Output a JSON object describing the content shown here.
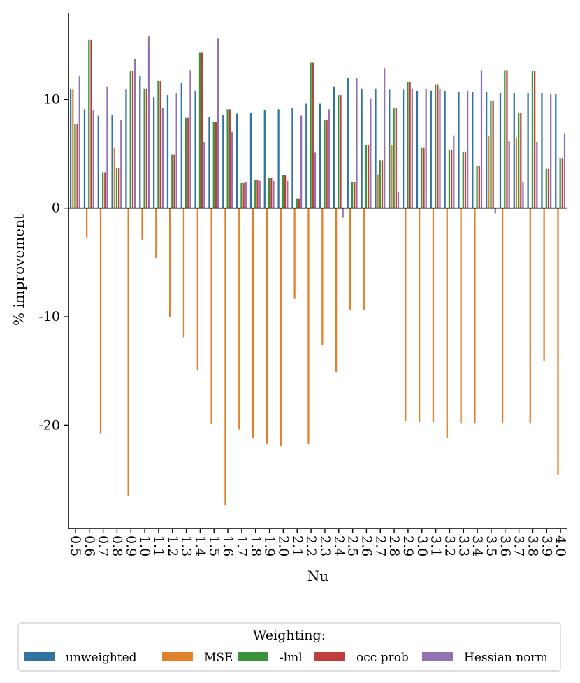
{
  "chart_data": {
    "type": "bar",
    "xlabel": "Nu",
    "ylabel": "% improvement",
    "ylim": [
      -29.5,
      18.0
    ],
    "yticks": [
      -20,
      -10,
      0,
      10
    ],
    "ytick_labels": [
      "-20",
      "-10",
      "0",
      "10"
    ],
    "categories": [
      "0.5",
      "0.6",
      "0.7",
      "0.8",
      "0.9",
      "1.0",
      "1.1",
      "1.2",
      "1.3",
      "1.4",
      "1.5",
      "1.6",
      "1.7",
      "1.8",
      "1.9",
      "2.0",
      "2.1",
      "2.2",
      "2.3",
      "2.4",
      "2.5",
      "2.6",
      "2.7",
      "2.8",
      "2.9",
      "3.0",
      "3.1",
      "3.2",
      "3.3",
      "3.4",
      "3.5",
      "3.6",
      "3.7",
      "3.8",
      "3.9",
      "4.0"
    ],
    "legend_title": "Weighting:",
    "legend_position": "bottom-center",
    "series": [
      {
        "name": "unweighted",
        "color": "#3274a1",
        "values": [
          10.9,
          9.1,
          8.5,
          8.6,
          10.9,
          12.2,
          10.2,
          10.4,
          11.5,
          10.8,
          8.4,
          8.6,
          8.7,
          8.8,
          9.0,
          9.1,
          9.2,
          9.6,
          9.6,
          11.2,
          12.0,
          11.0,
          11.0,
          10.9,
          10.9,
          10.8,
          10.8,
          10.8,
          10.7,
          10.7,
          10.7,
          10.6,
          10.6,
          10.6,
          10.6,
          10.5
        ]
      },
      {
        "name": "MSE",
        "color": "#e1812c",
        "values": [
          10.9,
          -2.7,
          -20.8,
          5.6,
          -26.5,
          -2.9,
          -4.6,
          -10.0,
          -11.9,
          -14.9,
          -19.9,
          -27.4,
          -20.4,
          -21.2,
          -21.7,
          -21.9,
          -8.3,
          -21.7,
          -12.6,
          -15.1,
          -9.4,
          -9.4,
          3.1,
          5.8,
          -19.6,
          -19.7,
          -19.7,
          -21.2,
          -19.8,
          -19.8,
          6.6,
          -19.8,
          6.5,
          -19.8,
          -14.1,
          -24.6
        ]
      },
      {
        "name": "-lml",
        "color": "#3a923a",
        "values": [
          7.7,
          15.5,
          3.3,
          3.7,
          12.6,
          11.0,
          11.7,
          4.9,
          8.3,
          14.3,
          7.9,
          9.1,
          2.3,
          2.6,
          2.8,
          3.0,
          0.9,
          13.4,
          8.1,
          10.4,
          2.4,
          5.8,
          4.4,
          9.2,
          11.6,
          5.6,
          11.4,
          5.4,
          5.2,
          3.9,
          9.9,
          12.7,
          8.8,
          12.6,
          3.6,
          4.6
        ]
      },
      {
        "name": "occ prob",
        "color": "#c03d3e",
        "values": [
          7.7,
          15.5,
          3.3,
          3.7,
          12.6,
          11.0,
          11.7,
          4.9,
          8.3,
          14.3,
          7.9,
          9.1,
          2.3,
          2.6,
          2.8,
          3.0,
          0.9,
          13.4,
          8.1,
          10.4,
          2.4,
          5.8,
          4.4,
          9.2,
          11.6,
          5.6,
          11.4,
          5.4,
          5.2,
          3.9,
          9.9,
          12.7,
          8.8,
          12.6,
          3.6,
          4.6
        ]
      },
      {
        "name": "Hessian norm",
        "color": "#9372b2",
        "values": [
          12.2,
          9.0,
          11.2,
          8.1,
          13.7,
          15.8,
          9.2,
          10.6,
          12.7,
          6.1,
          15.6,
          7.0,
          2.4,
          2.5,
          2.5,
          2.5,
          8.5,
          5.1,
          9.1,
          -0.9,
          12.0,
          10.1,
          12.9,
          1.5,
          11.0,
          11.0,
          11.0,
          6.7,
          10.8,
          12.7,
          -0.5,
          6.2,
          2.4,
          6.1,
          10.5,
          6.9
        ]
      }
    ]
  }
}
